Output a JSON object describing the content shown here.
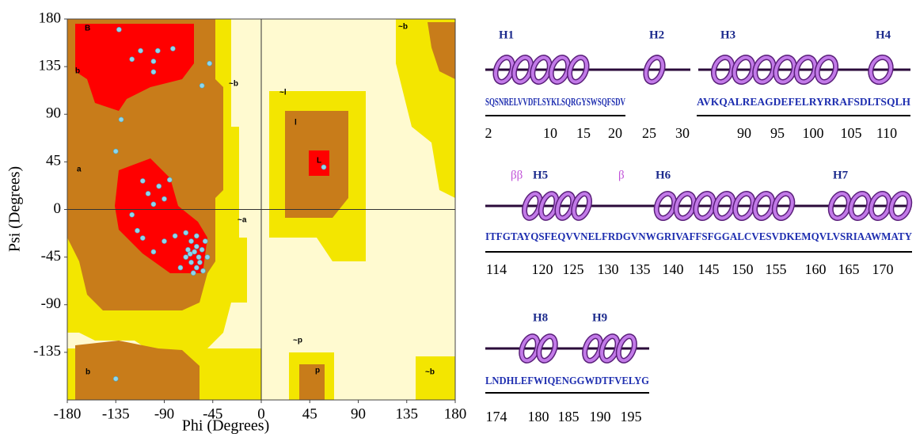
{
  "chart_data": {
    "type": "scatter",
    "x_label": "Phi (Degrees)",
    "y_label": "Psi (Degrees)",
    "xlim": [
      -180,
      180
    ],
    "ylim": [
      -180,
      180
    ],
    "xticks": [
      -180,
      -135,
      -90,
      -45,
      0,
      45,
      90,
      135,
      180
    ],
    "yticks": [
      -135,
      -90,
      -45,
      0,
      45,
      90,
      135,
      180
    ],
    "color": "#8fd6ec",
    "region_labels": [
      "B",
      "b",
      "a",
      "~b",
      "~l",
      "l",
      "L",
      "~a",
      "~p",
      "p",
      "~b",
      "~b",
      "b"
    ],
    "x": [
      -132,
      -112,
      -120,
      -100,
      -96,
      -82,
      -100,
      -48,
      -55,
      -130,
      -135,
      -110,
      -105,
      -100,
      -95,
      -85,
      -90,
      -120,
      -115,
      -110,
      -100,
      -90,
      -80,
      -70,
      -65,
      -60,
      -58,
      -62,
      -55,
      -65,
      -60,
      -70,
      -52,
      -57,
      -63,
      -75,
      -50,
      -135,
      58,
      -68,
      -54,
      -60,
      -66
    ],
    "y": [
      170,
      150,
      142,
      140,
      150,
      152,
      130,
      138,
      117,
      85,
      55,
      27,
      15,
      5,
      22,
      28,
      10,
      -5,
      -20,
      -27,
      -40,
      -30,
      -25,
      -22,
      -30,
      -35,
      -45,
      -40,
      -38,
      -50,
      -55,
      -45,
      -30,
      -50,
      -60,
      -55,
      -45,
      -160,
      40,
      -38,
      -58,
      -25,
      -42
    ]
  },
  "secondary_structure": {
    "rows": [
      {
        "labels": [
          "H1",
          "H2",
          "H3",
          "H4"
        ],
        "sequences": [
          "SQSNRELVVDFLSYKLSQRGYSWSQFSDV",
          "AVKQALREAGDEFELRYRRAFSDLTSQLH"
        ],
        "residues": [
          2,
          10,
          15,
          20,
          25,
          30,
          90,
          95,
          100,
          105,
          110
        ]
      },
      {
        "labels": [
          "ββ",
          "H5",
          "β",
          "H6",
          "H7"
        ],
        "sequences": [
          "ITFGTAYQSFEQVVNELFRDGVNWGRIVAFFSFGGALCVESVDKEMQVLVSRIAAWMATY"
        ],
        "residues": [
          114,
          120,
          125,
          130,
          135,
          140,
          145,
          150,
          155,
          160,
          165,
          170
        ]
      },
      {
        "labels": [
          "H8",
          "H9"
        ],
        "sequences": [
          "LNDHLEFWIQENGGWDTFVELYG"
        ],
        "residues": [
          174,
          180,
          185,
          190,
          195
        ]
      }
    ]
  }
}
